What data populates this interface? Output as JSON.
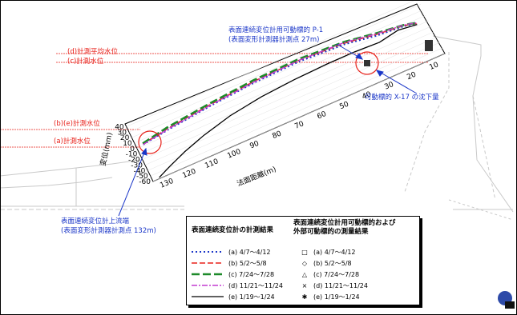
{
  "annotations": {
    "label_d": "(d)計測平均水位",
    "label_c": "(c)計測水位",
    "label_be": "(b)(e)計測水位",
    "label_a": "(a)計測水位",
    "p1_title": "表面連続変位計用可動標的 P-1",
    "p1_sub": "(表面変形計測器計測点 27m)",
    "x17": "可動標的 X-17 の沈下量",
    "upstream_title": "表面連続変位計上流端",
    "upstream_sub": "(表面変形計測器計測点 132m)"
  },
  "axis": {
    "ylabel": "変位(mm)",
    "xlabel": "法面距離(m)"
  },
  "legend": {
    "title_left": "表面連続変位計の計測結果",
    "title_right_1": "表面連続変位計用可動標的および",
    "title_right_2": "外部可動標的の測量結果",
    "left_items": [
      {
        "label": "(a) 4/7～4/12",
        "color": "#1a36c8",
        "dash": "2 3",
        "width": 2
      },
      {
        "label": "(b) 5/2～5/8",
        "color": "#e8211a",
        "dash": "7 3",
        "width": 1.5
      },
      {
        "label": "(c) 7/24～7/28",
        "color": "#1e8a2a",
        "dash": "10 4",
        "width": 2.6
      },
      {
        "label": "(d) 11/21～11/24",
        "color": "#c43bd0",
        "dash": "7 2 2 2",
        "width": 1.5
      },
      {
        "label": "(e) 1/19～1/24",
        "color": "#000000",
        "dash": "",
        "width": 1.3
      }
    ],
    "right_items": [
      {
        "symbol": "□",
        "label": "(a) 4/7～4/12"
      },
      {
        "symbol": "◇",
        "label": "(b) 5/2～5/8"
      },
      {
        "symbol": "△",
        "label": "(c) 7/24～7/28"
      },
      {
        "symbol": "×",
        "label": "(d) 11/21～11/24"
      },
      {
        "symbol": "✱",
        "label": "(e) 1/19～1/24"
      }
    ]
  },
  "chart_data": {
    "type": "line",
    "xlabel": "法面距離(m)",
    "ylabel": "変位(mm)",
    "x_ticks": [
      130,
      120,
      110,
      100,
      90,
      80,
      70,
      60,
      50,
      40,
      30,
      20,
      10
    ],
    "y_ticks": [
      40,
      30,
      20,
      10,
      0,
      -10,
      -20,
      -30,
      -40,
      -50,
      -60
    ],
    "x_range": [
      135,
      5
    ],
    "y_range": [
      -60,
      45
    ],
    "series": [
      {
        "name": "(a) 4/7～4/12",
        "x": [
          132,
          120,
          100,
          80,
          60,
          40,
          27,
          15,
          10
        ],
        "y": [
          2,
          8,
          16,
          22,
          24,
          20,
          12,
          8,
          4
        ]
      },
      {
        "name": "(b) 5/2～5/8",
        "x": [
          132,
          120,
          100,
          80,
          60,
          40,
          27,
          15,
          10
        ],
        "y": [
          3,
          10,
          18,
          24,
          26,
          22,
          14,
          9,
          4
        ]
      },
      {
        "name": "(c) 7/24～7/28",
        "x": [
          132,
          120,
          100,
          80,
          60,
          40,
          27,
          15,
          10
        ],
        "y": [
          4,
          12,
          20,
          26,
          28,
          24,
          16,
          10,
          5
        ]
      },
      {
        "name": "(d) 11/21～11/24",
        "x": [
          132,
          120,
          100,
          80,
          60,
          40,
          27,
          15,
          10
        ],
        "y": [
          2,
          9,
          17,
          23,
          26,
          23,
          15,
          10,
          5
        ]
      },
      {
        "name": "(e) 1/19～1/24",
        "x": [
          132,
          126,
          118,
          108,
          95,
          80,
          65,
          50,
          38,
          27,
          18,
          10
        ],
        "y": [
          -58,
          -48,
          -36,
          -24,
          -12,
          -4,
          0,
          2,
          2,
          0,
          6,
          2
        ]
      }
    ]
  }
}
